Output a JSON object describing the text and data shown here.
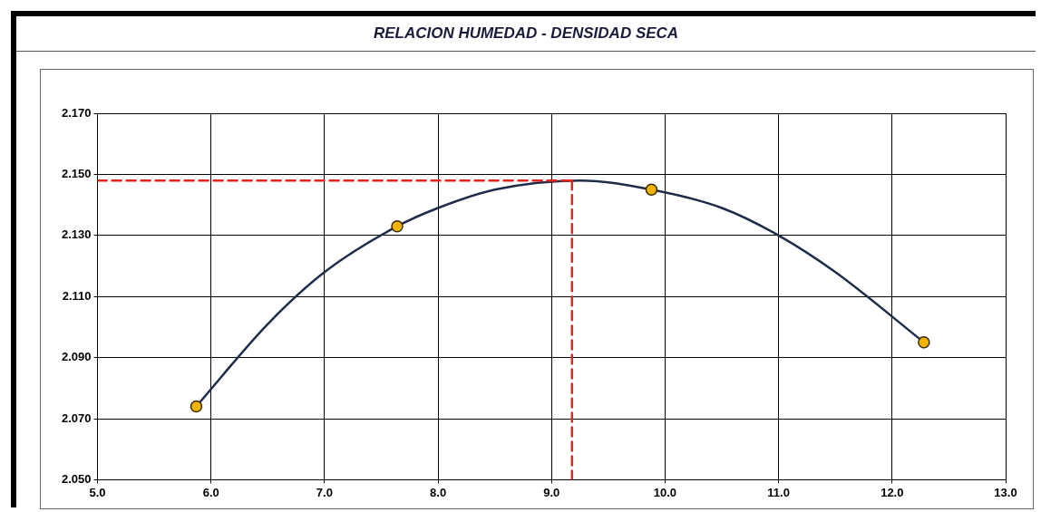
{
  "chart_data": {
    "type": "scatter",
    "title": "RELACION HUMEDAD - DENSIDAD SECA",
    "xlim": [
      5,
      13
    ],
    "xticks": [
      {
        "value": 5,
        "label": "5.0"
      },
      {
        "value": 6,
        "label": "6.0"
      },
      {
        "value": 7,
        "label": "7.0"
      },
      {
        "value": 8,
        "label": "8.0"
      },
      {
        "value": 9,
        "label": "9.0"
      },
      {
        "value": 10,
        "label": "10.0"
      },
      {
        "value": 11,
        "label": "11.0"
      },
      {
        "value": 12,
        "label": "12.0"
      },
      {
        "value": 13,
        "label": "13.0"
      }
    ],
    "ylim": [
      2.05,
      2.17
    ],
    "yticks": [
      {
        "value": 2.05,
        "label": "2.050"
      },
      {
        "value": 2.07,
        "label": "2.070"
      },
      {
        "value": 2.09,
        "label": "2.090"
      },
      {
        "value": 2.11,
        "label": "2.110"
      },
      {
        "value": 2.13,
        "label": "2.130"
      },
      {
        "value": 2.15,
        "label": "2.150"
      },
      {
        "value": 2.17,
        "label": "2.170"
      }
    ],
    "grid": true,
    "legend": false,
    "series": [
      {
        "type": "line",
        "color": "#1f2d4a",
        "marker": "none",
        "line_style": "solid",
        "x": [
          5.87,
          6.5,
          7.0,
          7.64,
          8.0,
          8.5,
          9.25,
          9.88,
          10.5,
          11.0,
          11.5,
          12.28
        ],
        "values": [
          2.074,
          2.101,
          2.118,
          2.133,
          2.139,
          2.145,
          2.148,
          2.145,
          2.139,
          2.13,
          2.118,
          2.095
        ]
      },
      {
        "type": "line",
        "color": "#e8241c",
        "marker": "none",
        "line_style": "dashed",
        "x": [
          5,
          9.18
        ],
        "values": [
          2.148,
          2.148
        ]
      },
      {
        "type": "line",
        "color": "#e8241c",
        "marker": "none",
        "line_style": "dashed",
        "x": [
          9.18,
          9.18
        ],
        "values": [
          2.05,
          2.148
        ]
      },
      {
        "color": "#f0b400",
        "marker": "circle",
        "x": [
          5.87,
          7.64,
          9.88,
          12.28
        ],
        "values": [
          2.074,
          2.133,
          2.145,
          2.095
        ]
      }
    ]
  }
}
